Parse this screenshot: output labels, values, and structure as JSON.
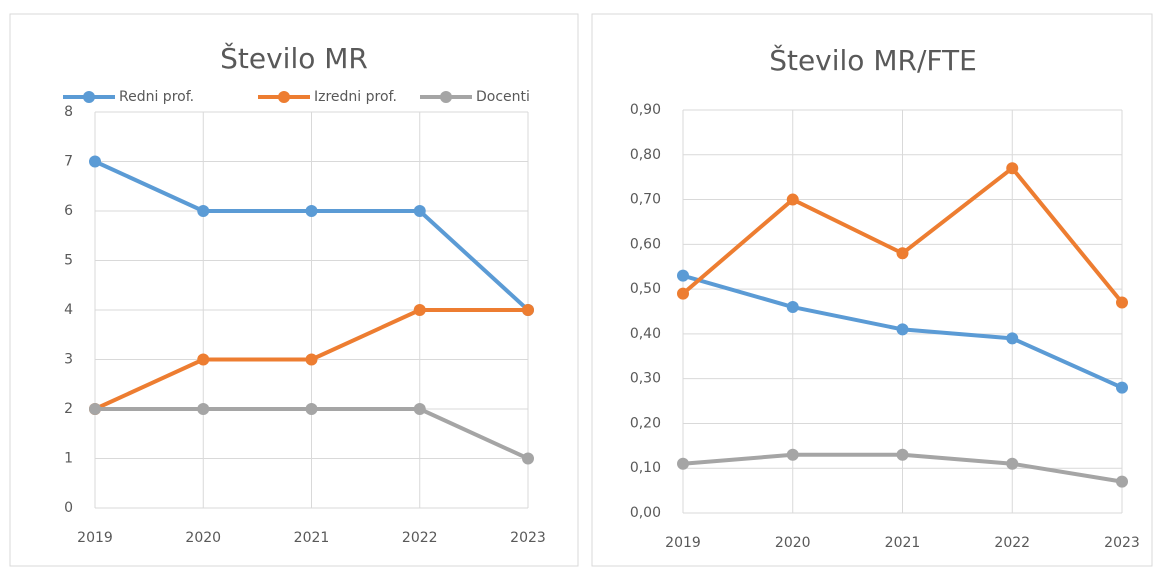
{
  "chart_data": [
    {
      "type": "line",
      "title": "Število MR",
      "categories": [
        "2019",
        "2020",
        "2021",
        "2022",
        "2023"
      ],
      "series": [
        {
          "name": "Redni prof.",
          "color": "#5b9bd5",
          "values": [
            7,
            6,
            6,
            6,
            4
          ]
        },
        {
          "name": "Izredni prof.",
          "color": "#ed7d31",
          "values": [
            2,
            3,
            3,
            4,
            4
          ]
        },
        {
          "name": "Docenti",
          "color": "#a5a5a5",
          "values": [
            2,
            2,
            2,
            2,
            1
          ]
        }
      ],
      "ylim": [
        0,
        8
      ],
      "yticks": [
        0,
        1,
        2,
        3,
        4,
        5,
        6,
        7,
        8
      ],
      "grid": true,
      "legend": "top"
    },
    {
      "type": "line",
      "title": "Število MR/FTE",
      "categories": [
        "2019",
        "2020",
        "2021",
        "2022",
        "2023"
      ],
      "series": [
        {
          "color": "#5b9bd5",
          "values": [
            0.53,
            0.46,
            0.41,
            0.39,
            0.28
          ]
        },
        {
          "color": "#ed7d31",
          "values": [
            0.49,
            0.7,
            0.58,
            0.77,
            0.47
          ]
        },
        {
          "color": "#a5a5a5",
          "values": [
            0.11,
            0.13,
            0.13,
            0.11,
            0.07
          ]
        }
      ],
      "ylim": [
        0,
        0.9
      ],
      "yticks": [
        {
          "value": 0,
          "label": "0,00"
        },
        {
          "value": 0.1,
          "label": "0,10"
        },
        {
          "value": 0.2,
          "label": "0,20"
        },
        {
          "value": 0.3,
          "label": "0,30"
        },
        {
          "value": 0.4,
          "label": "0,40"
        },
        {
          "value": 0.5,
          "label": "0,50"
        },
        {
          "value": 0.6,
          "label": "0,60"
        },
        {
          "value": 0.7,
          "label": "0,70"
        },
        {
          "value": 0.8,
          "label": "0,80"
        },
        {
          "value": 0.9,
          "label": "0,90"
        }
      ],
      "grid": true
    }
  ]
}
